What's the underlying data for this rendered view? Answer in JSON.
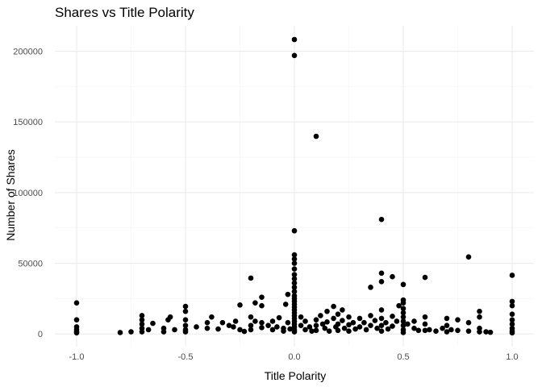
{
  "chart_data": {
    "type": "scatter",
    "title": "Shares vs Title Polarity",
    "xlabel": "Title Polarity",
    "ylabel": "Number of Shares",
    "xlim": [
      -1.1,
      1.1
    ],
    "ylim": [
      -9000,
      218000
    ],
    "x_ticks": [
      -1.0,
      -0.5,
      0.0,
      0.5,
      1.0
    ],
    "x_tick_labels": [
      "-1.0",
      "-0.5",
      "0.0",
      "0.5",
      "1.0"
    ],
    "y_ticks": [
      0,
      50000,
      100000,
      150000,
      200000
    ],
    "y_tick_labels": [
      "0",
      "50000",
      "100000",
      "150000",
      "200000"
    ],
    "grid": true,
    "point_color": "#000000",
    "points": [
      [
        0.0,
        208300
      ],
      [
        0.0,
        197000
      ],
      [
        0.1,
        139800
      ],
      [
        0.4,
        81000
      ],
      [
        0.0,
        73000
      ],
      [
        0.8,
        54500
      ],
      [
        0.0,
        56000
      ],
      [
        0.0,
        53000
      ],
      [
        0.0,
        50000
      ],
      [
        0.0,
        46000
      ],
      [
        0.0,
        42000
      ],
      [
        0.0,
        39000
      ],
      [
        0.0,
        36000
      ],
      [
        0.0,
        33000
      ],
      [
        0.0,
        30000
      ],
      [
        0.4,
        43000
      ],
      [
        0.45,
        40500
      ],
      [
        0.6,
        40000
      ],
      [
        1.0,
        41500
      ],
      [
        0.4,
        37000
      ],
      [
        0.5,
        35000
      ],
      [
        0.35,
        33000
      ],
      [
        -0.2,
        39500
      ],
      [
        -0.03,
        28000
      ],
      [
        0.0,
        27000
      ],
      [
        -0.15,
        26000
      ],
      [
        -0.18,
        22000
      ],
      [
        -0.15,
        20000
      ],
      [
        -0.25,
        20500
      ],
      [
        -0.5,
        19500
      ],
      [
        -1.0,
        22000
      ],
      [
        -0.04,
        21000
      ],
      [
        0.5,
        24000
      ],
      [
        0.5,
        22000
      ],
      [
        0.48,
        20000
      ],
      [
        1.0,
        23000
      ],
      [
        1.0,
        20000
      ],
      [
        0.0,
        25000
      ],
      [
        0.0,
        23000
      ],
      [
        0.0,
        21000
      ],
      [
        0.0,
        19000
      ],
      [
        0.0,
        17000
      ],
      [
        0.0,
        15000
      ],
      [
        0.0,
        13000
      ],
      [
        0.0,
        11000
      ],
      [
        0.0,
        9000
      ],
      [
        0.0,
        7000
      ],
      [
        0.0,
        5000
      ],
      [
        0.0,
        3000
      ],
      [
        0.0,
        1500
      ],
      [
        -1.0,
        10000
      ],
      [
        -1.0,
        5000
      ],
      [
        -1.0,
        3000
      ],
      [
        -1.0,
        1500
      ],
      [
        -1.0,
        800
      ],
      [
        -0.8,
        1000
      ],
      [
        -0.75,
        1500
      ],
      [
        -0.7,
        13000
      ],
      [
        -0.7,
        10000
      ],
      [
        -0.7,
        7000
      ],
      [
        -0.7,
        4000
      ],
      [
        -0.7,
        1500
      ],
      [
        -0.67,
        3000
      ],
      [
        -0.65,
        7500
      ],
      [
        -0.6,
        4000
      ],
      [
        -0.6,
        1500
      ],
      [
        -0.58,
        10000
      ],
      [
        -0.57,
        12000
      ],
      [
        -0.55,
        3000
      ],
      [
        -0.5,
        16000
      ],
      [
        -0.5,
        10000
      ],
      [
        -0.5,
        6000
      ],
      [
        -0.5,
        3000
      ],
      [
        -0.5,
        1500
      ],
      [
        -0.45,
        5000
      ],
      [
        -0.4,
        8000
      ],
      [
        -0.4,
        4000
      ],
      [
        -0.38,
        12000
      ],
      [
        -0.35,
        3500
      ],
      [
        -0.33,
        8000
      ],
      [
        -0.3,
        6000
      ],
      [
        -0.28,
        5000
      ],
      [
        -0.27,
        9000
      ],
      [
        -0.25,
        3000
      ],
      [
        -0.23,
        1800
      ],
      [
        -0.2,
        12000
      ],
      [
        -0.2,
        6000
      ],
      [
        -0.2,
        3000
      ],
      [
        -0.18,
        9000
      ],
      [
        -0.15,
        8000
      ],
      [
        -0.15,
        4500
      ],
      [
        -0.12,
        6000
      ],
      [
        -0.1,
        3000
      ],
      [
        -0.1,
        9000
      ],
      [
        -0.08,
        5000
      ],
      [
        -0.07,
        11500
      ],
      [
        -0.05,
        4000
      ],
      [
        -0.05,
        2000
      ],
      [
        -0.03,
        8000
      ],
      [
        -0.02,
        3500
      ],
      [
        0.03,
        12000
      ],
      [
        0.03,
        6000
      ],
      [
        0.05,
        3000
      ],
      [
        0.05,
        9000
      ],
      [
        0.07,
        5000
      ],
      [
        0.08,
        2000
      ],
      [
        0.1,
        10000
      ],
      [
        0.1,
        6000
      ],
      [
        0.1,
        2500
      ],
      [
        0.12,
        13000
      ],
      [
        0.13,
        7000
      ],
      [
        0.14,
        4000
      ],
      [
        0.15,
        16000
      ],
      [
        0.15,
        8500
      ],
      [
        0.16,
        2000
      ],
      [
        0.18,
        19500
      ],
      [
        0.18,
        11000
      ],
      [
        0.19,
        5000
      ],
      [
        0.2,
        14000
      ],
      [
        0.2,
        7000
      ],
      [
        0.2,
        2500
      ],
      [
        0.22,
        17000
      ],
      [
        0.22,
        9500
      ],
      [
        0.23,
        4000
      ],
      [
        0.25,
        12000
      ],
      [
        0.25,
        6500
      ],
      [
        0.25,
        2000
      ],
      [
        0.27,
        8000
      ],
      [
        0.28,
        3500
      ],
      [
        0.3,
        11000
      ],
      [
        0.3,
        5000
      ],
      [
        0.32,
        8000
      ],
      [
        0.33,
        3000
      ],
      [
        0.35,
        13000
      ],
      [
        0.35,
        6000
      ],
      [
        0.37,
        9500
      ],
      [
        0.38,
        4000
      ],
      [
        0.4,
        17000
      ],
      [
        0.4,
        11000
      ],
      [
        0.4,
        6000
      ],
      [
        0.4,
        2000
      ],
      [
        0.42,
        8000
      ],
      [
        0.43,
        3500
      ],
      [
        0.45,
        12500
      ],
      [
        0.45,
        5500
      ],
      [
        0.47,
        9000
      ],
      [
        0.5,
        18000
      ],
      [
        0.5,
        15000
      ],
      [
        0.5,
        12000
      ],
      [
        0.5,
        9000
      ],
      [
        0.5,
        6000
      ],
      [
        0.5,
        3000
      ],
      [
        0.5,
        1000
      ],
      [
        0.52,
        7000
      ],
      [
        0.55,
        4000
      ],
      [
        0.55,
        9000
      ],
      [
        0.57,
        2500
      ],
      [
        0.6,
        12000
      ],
      [
        0.6,
        7000
      ],
      [
        0.6,
        2500
      ],
      [
        0.62,
        3000
      ],
      [
        0.65,
        2000
      ],
      [
        0.68,
        4000
      ],
      [
        0.7,
        11000
      ],
      [
        0.7,
        6000
      ],
      [
        0.7,
        1500
      ],
      [
        0.72,
        3000
      ],
      [
        0.75,
        10000
      ],
      [
        0.75,
        2500
      ],
      [
        0.8,
        8000
      ],
      [
        0.8,
        2000
      ],
      [
        0.85,
        16000
      ],
      [
        0.85,
        12000
      ],
      [
        0.85,
        4000
      ],
      [
        0.85,
        1500
      ],
      [
        0.88,
        1500
      ],
      [
        0.9,
        1200
      ],
      [
        1.0,
        14000
      ],
      [
        1.0,
        10000
      ],
      [
        1.0,
        7000
      ],
      [
        1.0,
        4000
      ],
      [
        1.0,
        2000
      ],
      [
        1.0,
        800
      ]
    ]
  }
}
